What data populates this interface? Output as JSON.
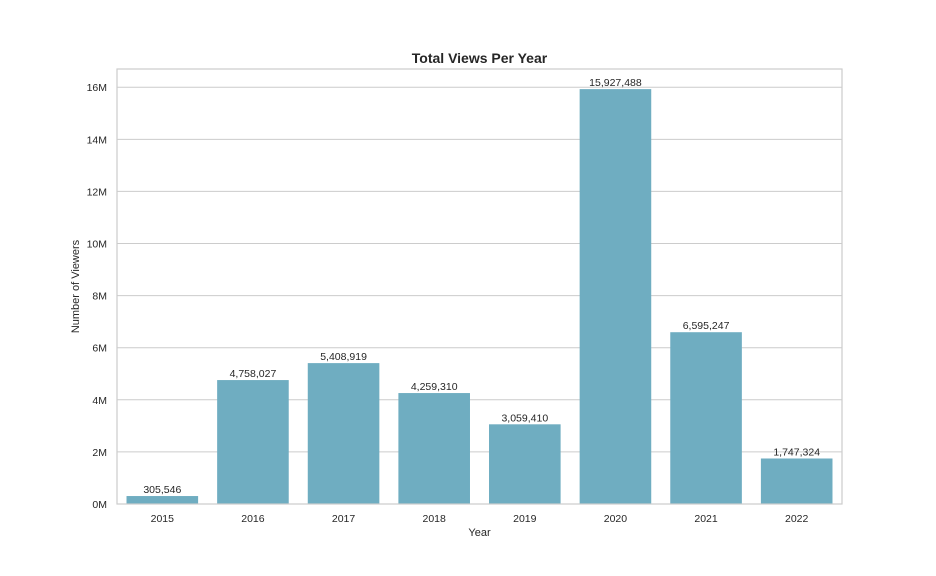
{
  "chart_data": {
    "type": "bar",
    "title": "Total Views Per Year",
    "xlabel": "Year",
    "ylabel": "Number of Viewers",
    "categories": [
      "2015",
      "2016",
      "2017",
      "2018",
      "2019",
      "2020",
      "2021",
      "2022"
    ],
    "values": [
      305546,
      4758027,
      5408919,
      4259310,
      3059410,
      15927488,
      6595247,
      1747324
    ],
    "data_labels": [
      "305,546",
      "4,758,027",
      "5,408,919",
      "4,259,310",
      "3,059,410",
      "15,927,488",
      "6,595,247",
      "1,747,324"
    ],
    "yticks": [
      0,
      2000000,
      4000000,
      6000000,
      8000000,
      10000000,
      12000000,
      14000000,
      16000000
    ],
    "ytick_labels": [
      "0M",
      "2M",
      "4M",
      "6M",
      "8M",
      "10M",
      "12M",
      "14M",
      "16M"
    ],
    "ylim": [
      0,
      16700000
    ],
    "grid": "horizontal",
    "bar_color": "#6fadc1",
    "grid_color": "#cccccc"
  }
}
